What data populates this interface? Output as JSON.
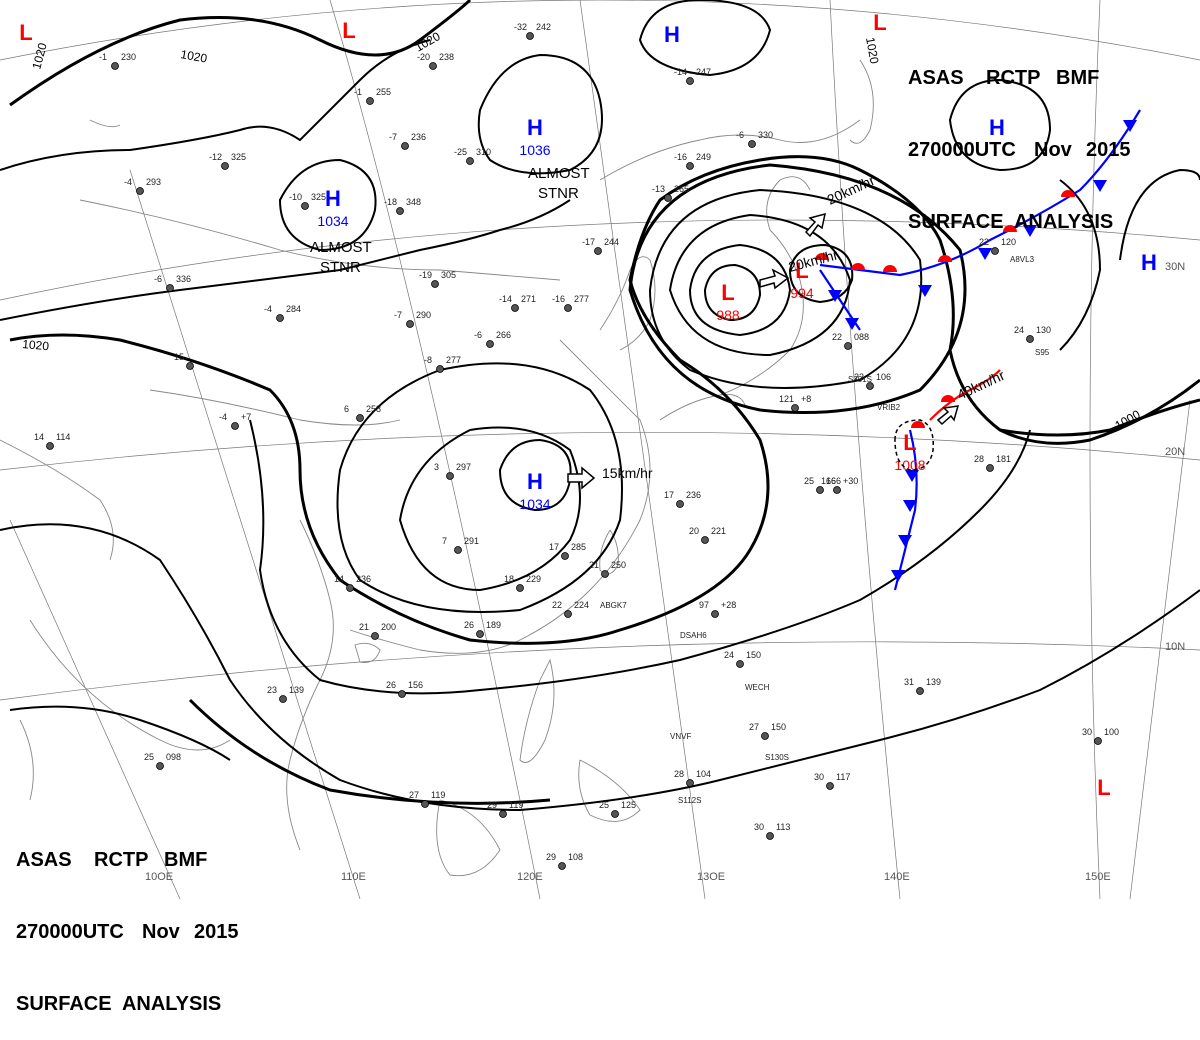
{
  "header": {
    "line1": [
      "ASAS",
      "RCTP",
      "BMF"
    ],
    "line2": [
      "270000UTC",
      "Nov",
      "2015"
    ],
    "line3": "SURFACE  ANALYSIS"
  },
  "colors": {
    "high": "#0000ff",
    "low": "#ff0000",
    "isobar": "#000000",
    "coast": "#888888",
    "grid": "#777777",
    "cold_front": "#0000ff",
    "warm_front": "#ff0000"
  },
  "pressure_systems": [
    {
      "type": "H",
      "value": "1036"
    },
    {
      "type": "H",
      "value": "1034"
    },
    {
      "type": "H",
      "value": "1034"
    },
    {
      "type": "H",
      "value": ""
    },
    {
      "type": "H",
      "value": ""
    },
    {
      "type": "H",
      "value": ""
    },
    {
      "type": "L",
      "value": "988"
    },
    {
      "type": "L",
      "value": "994"
    },
    {
      "type": "L",
      "value": "1008"
    },
    {
      "type": "L",
      "value": ""
    },
    {
      "type": "L",
      "value": ""
    },
    {
      "type": "L",
      "value": ""
    },
    {
      "type": "L",
      "value": ""
    }
  ],
  "motion_labels": [
    "20km/hr",
    "20km/hr",
    "15km/hr",
    "40km/hr"
  ],
  "status_labels": [
    {
      "line1": "ALMOST",
      "line2": "STNR"
    },
    {
      "line1": "ALMOST",
      "line2": "STNR"
    }
  ],
  "isobar_labels": [
    "1020",
    "1020",
    "1020",
    "1020",
    "1020",
    "1000"
  ],
  "grid_labels": {
    "lon": [
      "110E",
      "120E",
      "13OE",
      "140E",
      "150E",
      "10OE"
    ],
    "lat": [
      "30N",
      "20N",
      "10N"
    ]
  },
  "stations": [
    {
      "a": "-1",
      "b": "230"
    },
    {
      "a": "-20",
      "b": "238"
    },
    {
      "a": "-1",
      "b": "255"
    },
    {
      "a": "-7",
      "b": "236"
    },
    {
      "a": "-12",
      "b": "325"
    },
    {
      "a": "-4",
      "b": "293"
    },
    {
      "a": "-10",
      "b": "325"
    },
    {
      "a": "-18",
      "b": "348"
    },
    {
      "a": "-25",
      "b": "310"
    },
    {
      "a": "-32",
      "b": "242"
    },
    {
      "a": "-14",
      "b": "247"
    },
    {
      "a": "-16",
      "b": "249"
    },
    {
      "a": "-13",
      "b": "265"
    },
    {
      "a": "-6",
      "b": "330"
    },
    {
      "a": "-17",
      "b": "244"
    },
    {
      "a": "-14",
      "b": "271"
    },
    {
      "a": "-16",
      "b": "277"
    },
    {
      "a": "-19",
      "b": "305"
    },
    {
      "a": "-6",
      "b": "336"
    },
    {
      "a": "-4",
      "b": "284"
    },
    {
      "a": "-7",
      "b": "290"
    },
    {
      "a": "-6",
      "b": "266"
    },
    {
      "a": "-8",
      "b": "277"
    },
    {
      "a": "15",
      "b": ""
    },
    {
      "a": "6",
      "b": "258"
    },
    {
      "a": "3",
      "b": "297"
    },
    {
      "a": "14",
      "b": "114"
    },
    {
      "a": "-4",
      "b": "+7"
    },
    {
      "a": "7",
      "b": "291"
    },
    {
      "a": "17",
      "b": "285"
    },
    {
      "a": "17",
      "b": "236"
    },
    {
      "a": "20",
      "b": "221"
    },
    {
      "a": "21",
      "b": "250"
    },
    {
      "a": "18",
      "b": "229"
    },
    {
      "a": "22",
      "b": "224"
    },
    {
      "a": "14",
      "b": "236"
    },
    {
      "a": "21",
      "b": "200"
    },
    {
      "a": "26",
      "b": "189"
    },
    {
      "a": "26",
      "b": "156"
    },
    {
      "a": "23",
      "b": "139"
    },
    {
      "a": "25",
      "b": "098"
    },
    {
      "a": "27",
      "b": "119"
    },
    {
      "a": "29",
      "b": "119"
    },
    {
      "a": "28",
      "b": "104"
    },
    {
      "a": "27",
      "b": "150"
    },
    {
      "a": "30",
      "b": "117"
    },
    {
      "a": "30",
      "b": "113"
    },
    {
      "a": "30",
      "b": "100"
    },
    {
      "a": "31",
      "b": "139"
    },
    {
      "a": "28",
      "b": "181"
    },
    {
      "a": "25",
      "b": "166"
    },
    {
      "a": "22",
      "b": "088"
    },
    {
      "a": "22",
      "b": "106"
    },
    {
      "a": "22",
      "b": "120"
    },
    {
      "a": "24",
      "b": "130"
    },
    {
      "a": "121",
      "b": "+8"
    },
    {
      "a": "29",
      "b": "108"
    },
    {
      "a": "25",
      "b": "125"
    },
    {
      "a": "24",
      "b": "150"
    },
    {
      "a": "97",
      "b": "+28"
    },
    {
      "a": "166",
      "b": "+30"
    }
  ],
  "station_ids": [
    "ABGK7",
    "DSAH6",
    "WECH",
    "VNVF",
    "VRIB2",
    "S351S",
    "A8VL3",
    "S130S",
    "S112S",
    "S95"
  ]
}
